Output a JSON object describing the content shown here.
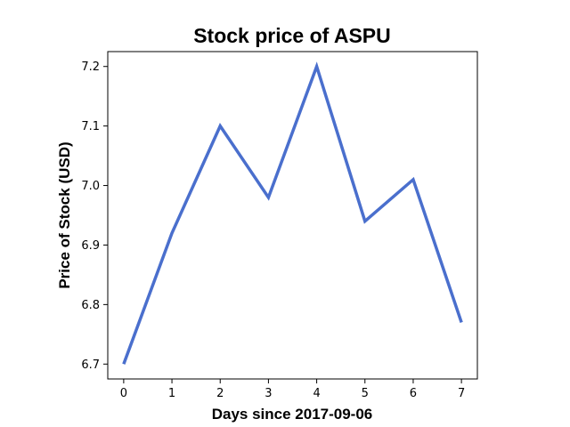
{
  "chart_data": {
    "type": "line",
    "title": "Stock price of ASPU",
    "xlabel": "Days since 2017-09-06",
    "ylabel": "Price of Stock (USD)",
    "x": [
      0,
      1,
      2,
      3,
      4,
      5,
      6,
      7
    ],
    "series": [
      {
        "values": [
          6.7,
          6.92,
          7.1,
          6.98,
          7.2,
          6.94,
          7.01,
          6.77
        ]
      }
    ],
    "xticks": [
      "0",
      "1",
      "2",
      "3",
      "4",
      "5",
      "6",
      "7"
    ],
    "yticks": [
      "6.7",
      "6.8",
      "6.9",
      "7.0",
      "7.1",
      "7.2"
    ],
    "xlim": [
      -0.33,
      7.33
    ],
    "ylim": [
      6.675,
      7.225
    ],
    "grid": false,
    "line_color": "#4a6fcd"
  }
}
